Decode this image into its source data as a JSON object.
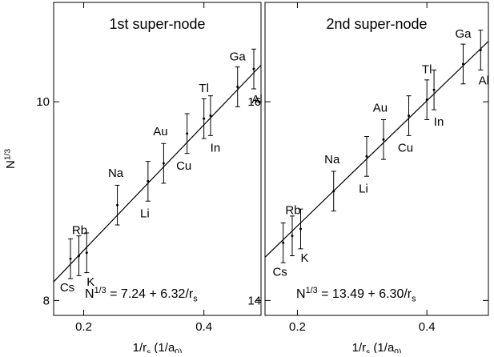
{
  "chart_data": [
    {
      "type": "scatter",
      "title": "1st super-node",
      "xlabel": "1/r_s (1/a_0)",
      "ylabel": "N^1/3",
      "xlim": [
        0.15,
        0.495
      ],
      "ylim": [
        7.85,
        11.0
      ],
      "x_ticks": [
        0.2,
        0.4
      ],
      "y_ticks": [
        8,
        10
      ],
      "grid": false,
      "points": [
        {
          "label": "Cs",
          "x": 0.178,
          "y": 8.42,
          "err": 0.2
        },
        {
          "label": "Rb",
          "x": 0.192,
          "y": 8.45,
          "err": 0.2
        },
        {
          "label": "K",
          "x": 0.205,
          "y": 8.48,
          "err": 0.2
        },
        {
          "label": "Na",
          "x": 0.256,
          "y": 8.96,
          "err": 0.2
        },
        {
          "label": "Li",
          "x": 0.307,
          "y": 9.2,
          "err": 0.2
        },
        {
          "label": "Au",
          "x": 0.333,
          "y": 9.38,
          "err": 0.2
        },
        {
          "label": "Cu",
          "x": 0.372,
          "y": 9.68,
          "err": 0.2
        },
        {
          "label": "Tl",
          "x": 0.4,
          "y": 9.83,
          "err": 0.2
        },
        {
          "label": "In",
          "x": 0.411,
          "y": 9.86,
          "err": 0.2
        },
        {
          "label": "Ga",
          "x": 0.456,
          "y": 10.15,
          "err": 0.2
        },
        {
          "label": "Al",
          "x": 0.483,
          "y": 10.33,
          "err": 0.2
        }
      ],
      "fit": {
        "intercept": 7.24,
        "slope": 6.32,
        "label": "N^1/3 = 7.24 + 6.32/r_s"
      }
    },
    {
      "type": "scatter",
      "title": "2nd super-node",
      "xlabel": "1/r_s (1/a_0)",
      "ylabel": "",
      "xlim": [
        0.15,
        0.495
      ],
      "ylim": [
        13.85,
        17.0
      ],
      "x_ticks": [
        0.2,
        0.4
      ],
      "y_ticks": [
        14,
        16
      ],
      "grid": false,
      "points": [
        {
          "label": "Cs",
          "x": 0.178,
          "y": 14.58,
          "err": 0.2
        },
        {
          "label": "Rb",
          "x": 0.192,
          "y": 14.65,
          "err": 0.2
        },
        {
          "label": "K",
          "x": 0.205,
          "y": 14.72,
          "err": 0.2
        },
        {
          "label": "Na",
          "x": 0.256,
          "y": 15.1,
          "err": 0.2
        },
        {
          "label": "Li",
          "x": 0.307,
          "y": 15.45,
          "err": 0.2
        },
        {
          "label": "Au",
          "x": 0.333,
          "y": 15.62,
          "err": 0.2
        },
        {
          "label": "Cu",
          "x": 0.372,
          "y": 15.86,
          "err": 0.2
        },
        {
          "label": "Tl",
          "x": 0.4,
          "y": 16.02,
          "err": 0.2
        },
        {
          "label": "In",
          "x": 0.411,
          "y": 16.12,
          "err": 0.2
        },
        {
          "label": "Ga",
          "x": 0.456,
          "y": 16.38,
          "err": 0.2
        },
        {
          "label": "Al",
          "x": 0.483,
          "y": 16.52,
          "err": 0.2
        }
      ],
      "fit": {
        "intercept": 13.49,
        "slope": 6.3,
        "label": "N^1/3 = 13.49 + 6.30/r_s"
      }
    }
  ]
}
